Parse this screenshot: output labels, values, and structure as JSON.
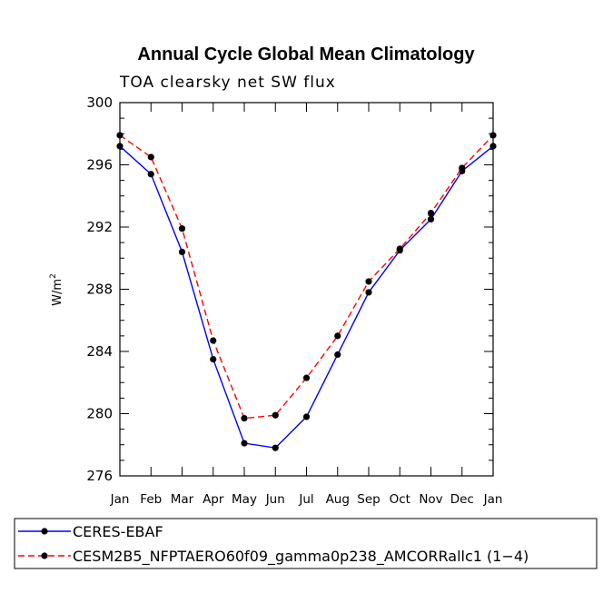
{
  "chart_data": {
    "type": "line",
    "title": "Annual Cycle Global Mean Climatology",
    "subtitle": "TOA clearsky net SW flux",
    "xlabel": "",
    "ylabel": "W/m",
    "ylabel_superscript": "2",
    "categories": [
      "Jan",
      "Feb",
      "Mar",
      "Apr",
      "May",
      "Jun",
      "Jul",
      "Aug",
      "Sep",
      "Oct",
      "Nov",
      "Dec",
      "Jan"
    ],
    "ylim": [
      276,
      300
    ],
    "yticks": [
      276,
      280,
      284,
      288,
      292,
      296,
      300
    ],
    "y_minor_step": 1,
    "series": [
      {
        "name": "CERES-EBAF",
        "color": "#0000ff",
        "dash": "solid",
        "values": [
          297.2,
          295.4,
          290.4,
          283.5,
          278.1,
          277.8,
          279.8,
          283.8,
          287.8,
          290.5,
          292.5,
          295.6,
          297.2
        ]
      },
      {
        "name": "CESM2B5_NFPTAERO60f09_gamma0p238_AMCORRallc1 (1−4)",
        "color": "#ff0000",
        "dash": "dashed",
        "values": [
          297.9,
          296.5,
          291.9,
          284.7,
          279.7,
          279.9,
          282.3,
          285.0,
          288.5,
          290.6,
          292.9,
          295.8,
          297.9
        ]
      }
    ],
    "grid": false,
    "legend_position": "bottom"
  }
}
